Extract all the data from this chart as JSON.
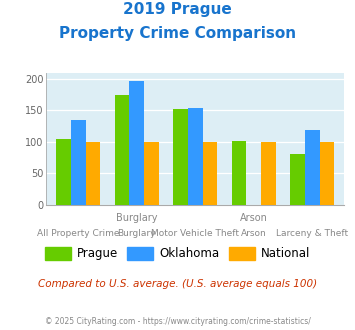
{
  "title_line1": "2019 Prague",
  "title_line2": "Property Crime Comparison",
  "title_color": "#1874cd",
  "categories": [
    "All Property Crime",
    "Burglary",
    "Motor Vehicle Theft",
    "Arson",
    "Larceny & Theft"
  ],
  "top_labels": [
    "",
    "Burglary",
    "",
    "Arson",
    ""
  ],
  "prague": [
    104,
    174,
    152,
    101,
    81
  ],
  "oklahoma": [
    135,
    196,
    153,
    0,
    119
  ],
  "national": [
    100,
    100,
    100,
    100,
    100
  ],
  "prague_color": "#66cc00",
  "oklahoma_color": "#3399ff",
  "national_color": "#ffaa00",
  "ylim": [
    0,
    210
  ],
  "yticks": [
    0,
    50,
    100,
    150,
    200
  ],
  "plot_bg": "#ddeef5",
  "legend_labels": [
    "Prague",
    "Oklahoma",
    "National"
  ],
  "subtitle_text": "Compared to U.S. average. (U.S. average equals 100)",
  "subtitle_color": "#cc3300",
  "footer_text": "© 2025 CityRating.com - https://www.cityrating.com/crime-statistics/",
  "footer_color": "#888888",
  "bar_width": 0.25
}
